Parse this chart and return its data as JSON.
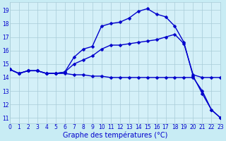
{
  "xlabel": "Graphe des températures (°C)",
  "background_color": "#c8ecf4",
  "plot_bg_color": "#d4f0f8",
  "grid_color": "#a8ccd8",
  "line_color": "#0000cc",
  "x_ticks": [
    0,
    1,
    2,
    3,
    4,
    5,
    6,
    7,
    8,
    9,
    10,
    11,
    12,
    13,
    14,
    15,
    16,
    17,
    18,
    19,
    20,
    21,
    22,
    23
  ],
  "y_ticks": [
    11,
    12,
    13,
    14,
    15,
    16,
    17,
    18,
    19
  ],
  "xlim": [
    0,
    23
  ],
  "ylim": [
    10.6,
    19.6
  ],
  "line_top_x": [
    0,
    1,
    2,
    3,
    4,
    5,
    6,
    7,
    8,
    9,
    10,
    11,
    12,
    13,
    14,
    15,
    16,
    17,
    18,
    19,
    20,
    21,
    22,
    23
  ],
  "line_top_y": [
    14.6,
    14.3,
    14.5,
    14.5,
    14.3,
    14.3,
    14.4,
    15.5,
    16.1,
    16.3,
    17.8,
    18.0,
    18.1,
    18.4,
    18.9,
    19.1,
    18.7,
    18.5,
    17.8,
    16.6,
    14.1,
    12.8,
    11.6,
    11.0
  ],
  "line_mid_x": [
    0,
    1,
    2,
    3,
    4,
    5,
    6,
    7,
    8,
    9,
    10,
    11,
    12,
    13,
    14,
    15,
    16,
    17,
    18,
    19,
    20,
    21,
    22,
    23
  ],
  "line_mid_y": [
    14.6,
    14.3,
    14.5,
    14.5,
    14.3,
    14.3,
    14.4,
    15.0,
    15.3,
    15.6,
    16.1,
    16.4,
    16.4,
    16.5,
    16.6,
    16.7,
    16.8,
    17.0,
    17.2,
    16.5,
    14.2,
    14.0,
    14.0,
    14.0
  ],
  "line_bot_x": [
    0,
    1,
    2,
    3,
    4,
    5,
    6,
    7,
    8,
    9,
    10,
    11,
    12,
    13,
    14,
    15,
    16,
    17,
    18,
    19,
    20,
    21,
    22,
    23
  ],
  "line_bot_y": [
    14.6,
    14.3,
    14.5,
    14.5,
    14.3,
    14.3,
    14.3,
    14.2,
    14.2,
    14.1,
    14.1,
    14.0,
    14.0,
    14.0,
    14.0,
    14.0,
    14.0,
    14.0,
    14.0,
    14.0,
    14.0,
    13.0,
    11.6,
    11.0
  ],
  "marker_size": 2.5,
  "line_width": 1.0,
  "tick_fontsize": 5.5,
  "label_fontsize": 7.0
}
